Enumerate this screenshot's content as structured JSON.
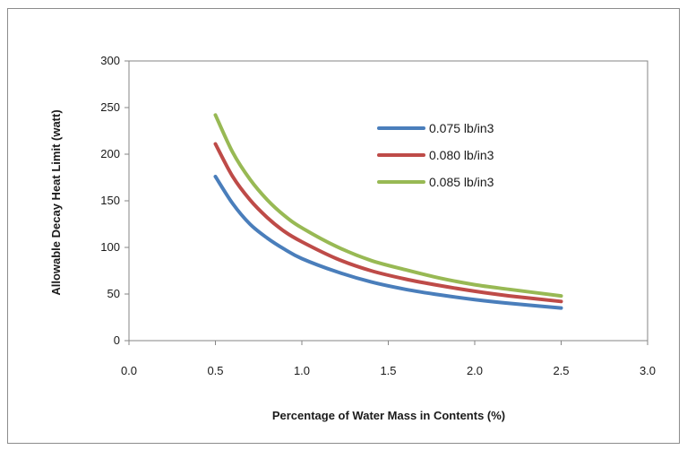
{
  "chart_data": {
    "type": "line",
    "xlabel": "Percentage of  Water Mass in Contents (%)",
    "ylabel": "Allowable Decay Heat Limit (watt)",
    "xlim": [
      0.0,
      3.0
    ],
    "ylim": [
      0,
      300
    ],
    "x_ticks": [
      "0.0",
      "0.5",
      "1.0",
      "1.5",
      "2.0",
      "2.5",
      "3.0"
    ],
    "y_ticks": [
      "0",
      "50",
      "100",
      "150",
      "200",
      "250",
      "300"
    ],
    "grid": false,
    "legend_position": "upper-right-inside",
    "series": [
      {
        "name": "0.075 lb/in3",
        "color": "#4a7ebb",
        "x": [
          0.5,
          0.6,
          0.7,
          0.8,
          0.9,
          1.0,
          1.2,
          1.4,
          1.6,
          1.8,
          2.0,
          2.2,
          2.5
        ],
        "y": [
          176,
          147,
          125,
          110,
          98,
          88,
          74,
          63,
          55,
          49,
          44,
          40,
          35
        ]
      },
      {
        "name": "0.080 lb/in3",
        "color": "#be4b48",
        "x": [
          0.5,
          0.6,
          0.7,
          0.8,
          0.9,
          1.0,
          1.2,
          1.4,
          1.6,
          1.8,
          2.0,
          2.2,
          2.5
        ],
        "y": [
          211,
          176,
          151,
          132,
          117,
          106,
          88,
          75,
          66,
          59,
          53,
          48,
          42
        ]
      },
      {
        "name": "0.085 lb/in3",
        "color": "#98b954",
        "x": [
          0.5,
          0.6,
          0.7,
          0.8,
          0.9,
          1.0,
          1.2,
          1.4,
          1.6,
          1.8,
          2.0,
          2.2,
          2.5
        ],
        "y": [
          242,
          202,
          173,
          151,
          134,
          121,
          101,
          86,
          76,
          67,
          60,
          55,
          48
        ]
      }
    ]
  }
}
